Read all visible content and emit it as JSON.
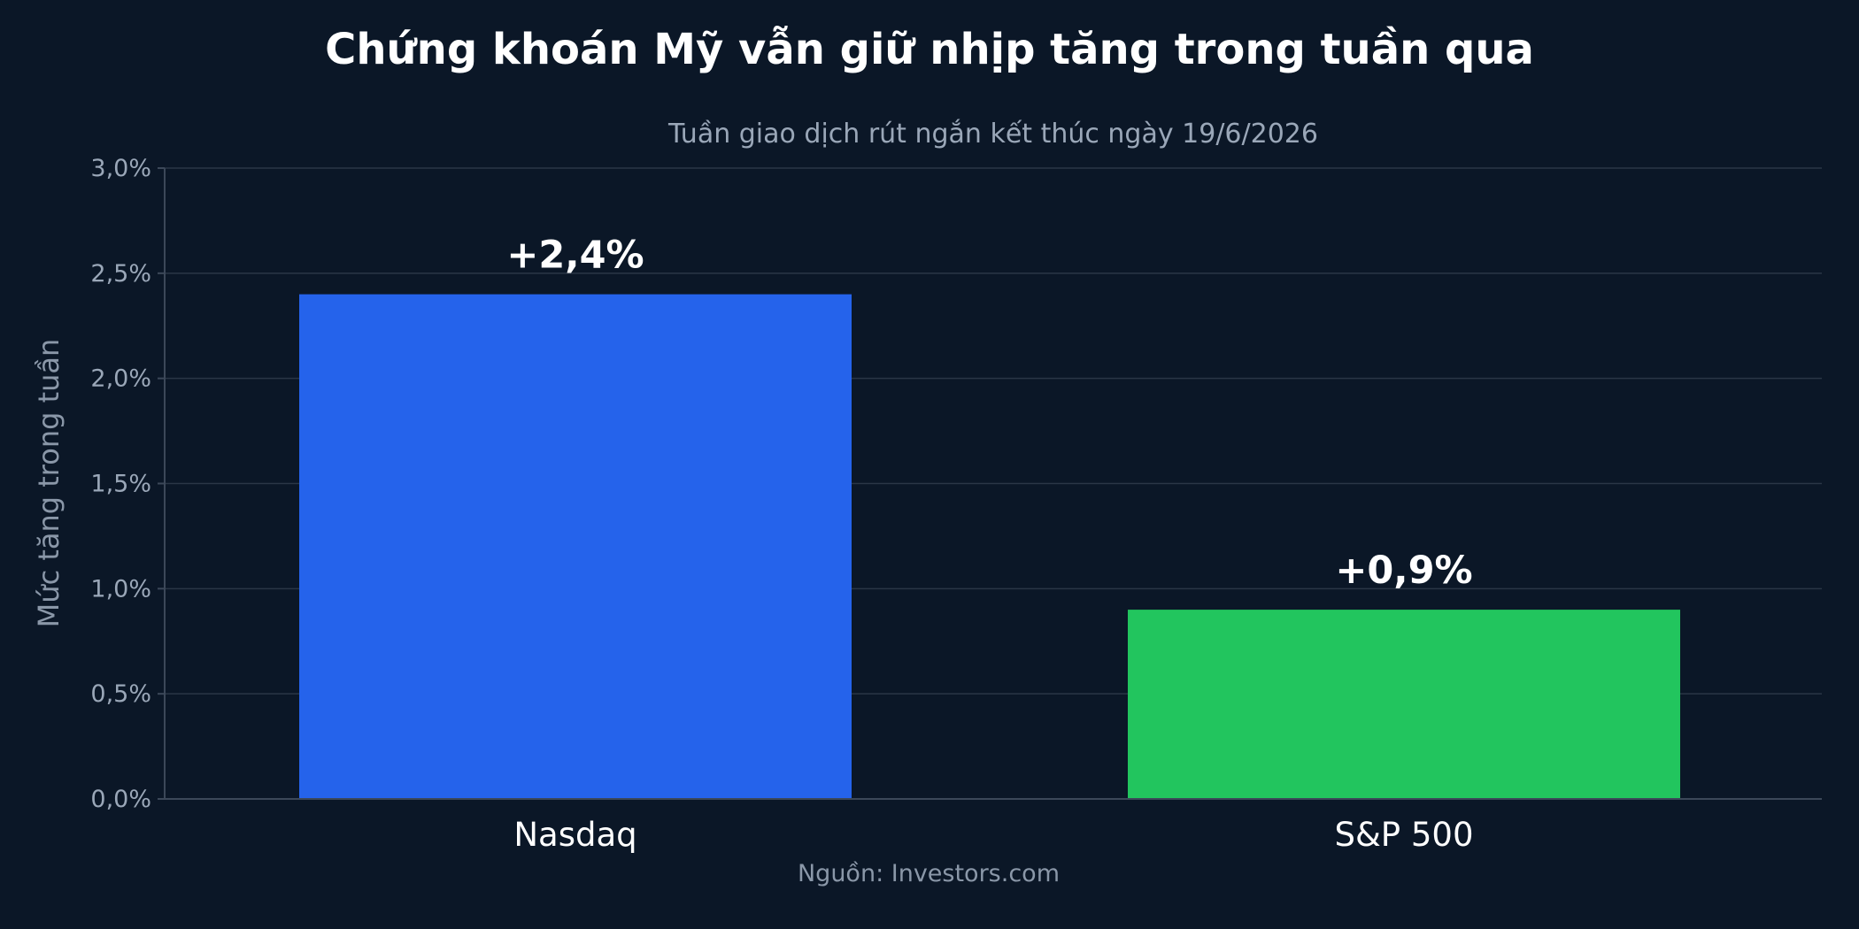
{
  "chart_data": {
    "type": "bar",
    "title": "Chứng khoán Mỹ vẫn giữ nhịp tăng trong tuần qua",
    "subtitle": "Tuần giao dịch rút ngắn kết thúc ngày 19/6/2026",
    "ylabel": "Mức tăng trong tuần",
    "xlabel": "",
    "categories": [
      "Nasdaq",
      "S&P 500"
    ],
    "values": [
      2.4,
      0.9
    ],
    "value_labels": [
      "+2,4%",
      "+0,9%"
    ],
    "bar_colors": [
      "#2563eb",
      "#22c55e"
    ],
    "ylim": [
      0,
      3.0
    ],
    "yticks": [
      0,
      0.5,
      1.0,
      1.5,
      2.0,
      2.5,
      3.0
    ],
    "ytick_labels": [
      "0,0%",
      "0,5%",
      "1,0%",
      "1,5%",
      "2,0%",
      "2,5%",
      "3,0%"
    ],
    "grid": true,
    "legend": "none",
    "source": "Nguồn: Investors.com"
  }
}
